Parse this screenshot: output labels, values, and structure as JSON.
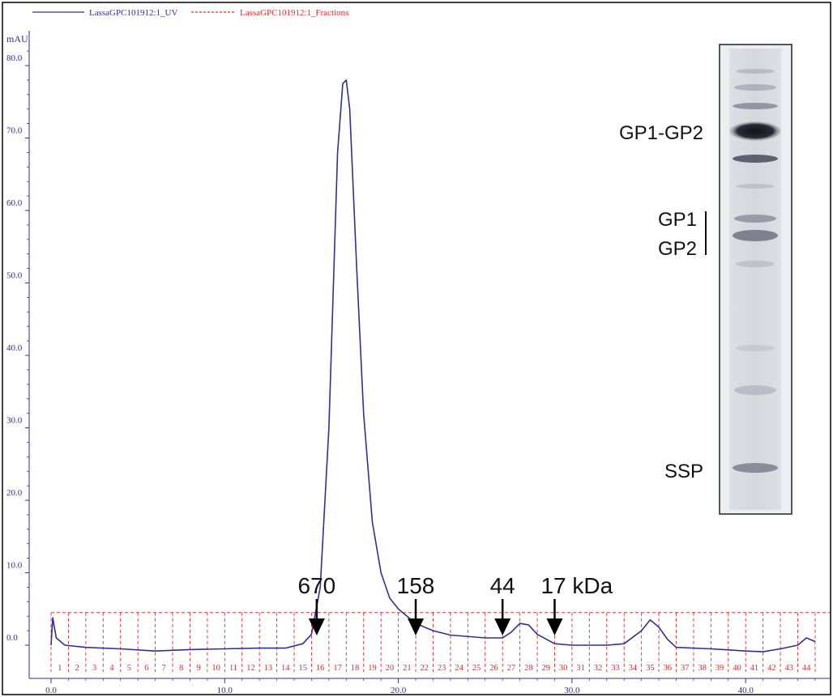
{
  "chart_data": {
    "type": "line",
    "ylabel": "mAU",
    "xlim": [
      0,
      44
    ],
    "ylim": [
      -3,
      84
    ],
    "x_ticks": [
      "0.0",
      "10.0",
      "20.0",
      "30.0",
      "40.0"
    ],
    "y_ticks": [
      "0.0",
      "10.0",
      "20.0",
      "30.0",
      "40.0",
      "50.0",
      "60.0",
      "70.0",
      "80.0"
    ],
    "legend_position": "top-left",
    "series": [
      {
        "name": "LassaGPC101912:1_UV",
        "color": "#2e3192",
        "points": [
          [
            0.0,
            0.0
          ],
          [
            0.1,
            3.8
          ],
          [
            0.3,
            1.0
          ],
          [
            0.8,
            0.0
          ],
          [
            2.0,
            -0.3
          ],
          [
            4.0,
            -0.5
          ],
          [
            6.0,
            -0.8
          ],
          [
            8.0,
            -0.6
          ],
          [
            10.0,
            -0.5
          ],
          [
            12.0,
            -0.4
          ],
          [
            13.5,
            -0.4
          ],
          [
            14.5,
            0.2
          ],
          [
            15.0,
            1.5
          ],
          [
            15.5,
            8.0
          ],
          [
            16.0,
            30.0
          ],
          [
            16.5,
            68.0
          ],
          [
            16.8,
            77.5
          ],
          [
            17.0,
            78.0
          ],
          [
            17.2,
            74.0
          ],
          [
            17.6,
            52.0
          ],
          [
            18.0,
            32.0
          ],
          [
            18.5,
            17.0
          ],
          [
            19.0,
            10.0
          ],
          [
            19.5,
            6.5
          ],
          [
            20.0,
            5.0
          ],
          [
            21.0,
            3.0
          ],
          [
            22.0,
            2.0
          ],
          [
            23.0,
            1.4
          ],
          [
            25.0,
            1.0
          ],
          [
            26.0,
            1.0
          ],
          [
            26.5,
            1.8
          ],
          [
            27.0,
            3.0
          ],
          [
            27.5,
            2.8
          ],
          [
            28.0,
            1.5
          ],
          [
            29.0,
            0.2
          ],
          [
            30.0,
            0.0
          ],
          [
            32.0,
            0.0
          ],
          [
            33.0,
            0.2
          ],
          [
            34.0,
            2.0
          ],
          [
            34.5,
            3.5
          ],
          [
            35.0,
            2.5
          ],
          [
            35.5,
            0.8
          ],
          [
            36.0,
            -0.3
          ],
          [
            38.0,
            -0.5
          ],
          [
            40.0,
            -0.8
          ],
          [
            41.0,
            -0.9
          ],
          [
            42.0,
            -0.5
          ],
          [
            43.0,
            0.0
          ],
          [
            43.5,
            1.0
          ],
          [
            44.0,
            0.5
          ]
        ]
      },
      {
        "name": "LassaGPC101912:1_Fractions",
        "color": "#e8262b",
        "fractions": {
          "labels": [
            "1",
            "2",
            "3",
            "4",
            "5",
            "6",
            "7",
            "8",
            "9",
            "10",
            "11",
            "12",
            "13",
            "14",
            "15",
            "16",
            "17",
            "18",
            "19",
            "20",
            "21",
            "22",
            "23",
            "24",
            "25",
            "26",
            "27",
            "28",
            "29",
            "30",
            "31",
            "32",
            "33",
            "34",
            "35",
            "36",
            "37",
            "38",
            "39",
            "40",
            "41",
            "42",
            "43",
            "44"
          ],
          "start": 0.0,
          "width": 1.0
        }
      }
    ],
    "annotations": {
      "markers": [
        {
          "label": "670",
          "x": 15.3
        },
        {
          "label": "158",
          "x": 21.0
        },
        {
          "label": "44",
          "x": 26.0
        },
        {
          "label": "17 kDa",
          "x": 29.0
        }
      ]
    },
    "gel_inset": {
      "bands": [
        "GP1-GP2",
        "GP1",
        "GP2",
        "SSP"
      ]
    }
  }
}
